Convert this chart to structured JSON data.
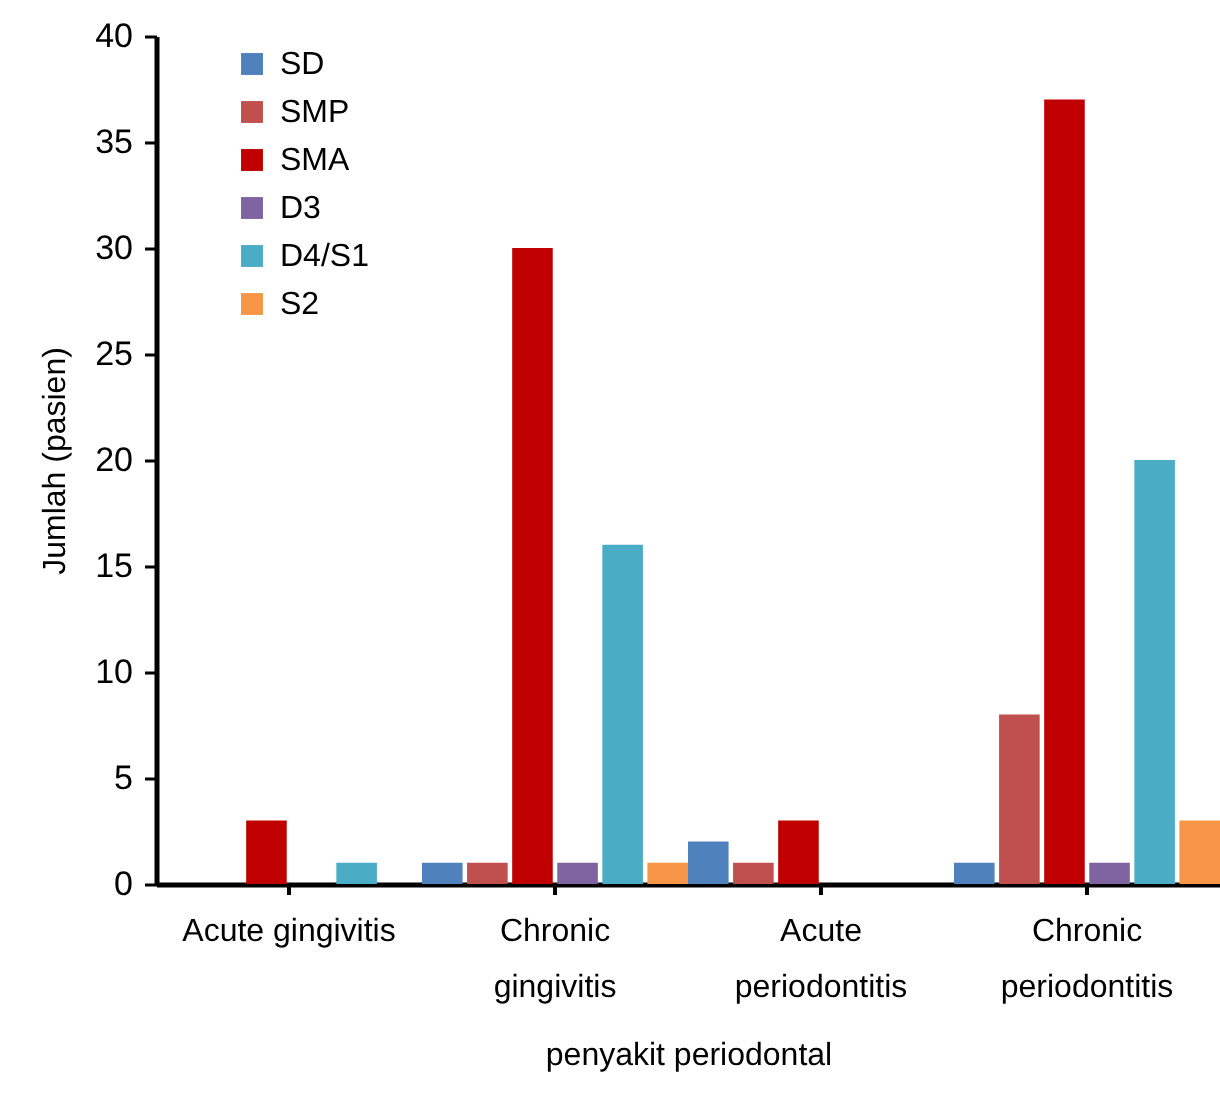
{
  "chart_data": {
    "type": "bar",
    "xlabel": "penyakit periodontal",
    "ylabel": "Jumlah (pasien)",
    "categories": [
      "Acute gingivitis",
      "Chronic\ngingivitis",
      "Acute\nperiodontitis",
      "Chronic\nperiodontitis"
    ],
    "series": [
      {
        "name": "SD",
        "color": "#4f81bd",
        "values": [
          0,
          1,
          2,
          1
        ]
      },
      {
        "name": "SMP",
        "color": "#c0504d",
        "values": [
          0,
          1,
          1,
          8
        ]
      },
      {
        "name": "SMA",
        "color": "#c00000",
        "values": [
          3,
          30,
          3,
          37
        ]
      },
      {
        "name": "D3",
        "color": "#8064a2",
        "values": [
          0,
          1,
          0,
          1
        ]
      },
      {
        "name": "D4/S1",
        "color": "#4bacc6",
        "values": [
          1,
          16,
          0,
          20
        ]
      },
      {
        "name": "S2",
        "color": "#f79646",
        "values": [
          0,
          1,
          0,
          3
        ]
      }
    ],
    "ylim": [
      0,
      40
    ],
    "yticks": [
      0,
      5,
      10,
      15,
      20,
      25,
      30,
      35,
      40
    ],
    "grid": false,
    "legend": "top left"
  }
}
